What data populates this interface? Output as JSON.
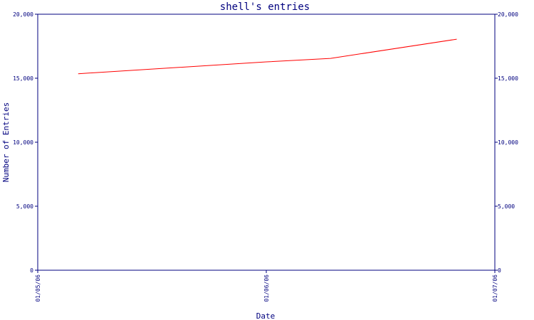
{
  "chart_data": {
    "type": "line",
    "title": "shell's entries",
    "xlabel": "Date",
    "ylabel": "Number of Entries",
    "x_ticks": [
      "01/05/06",
      "01/06/06",
      "01/07/06"
    ],
    "ylim": [
      0,
      20000
    ],
    "y_ticks": [
      {
        "value": 0,
        "label": "0"
      },
      {
        "value": 5000,
        "label": "5,000"
      },
      {
        "value": 10000,
        "label": "10,000"
      },
      {
        "value": 15000,
        "label": "15,000"
      },
      {
        "value": 20000,
        "label": "20,000"
      }
    ],
    "grid": false,
    "series": [
      {
        "color": "#ff0000",
        "points": [
          {
            "x": "01/05/06 04:15",
            "y": 15350
          },
          {
            "x": "01/06/06 00:00",
            "y": 16280
          },
          {
            "x": "01/06/06 06:45",
            "y": 16550
          },
          {
            "x": "01/06/06 20:00",
            "y": 18050
          }
        ]
      }
    ],
    "axis_color": "#00007f"
  }
}
